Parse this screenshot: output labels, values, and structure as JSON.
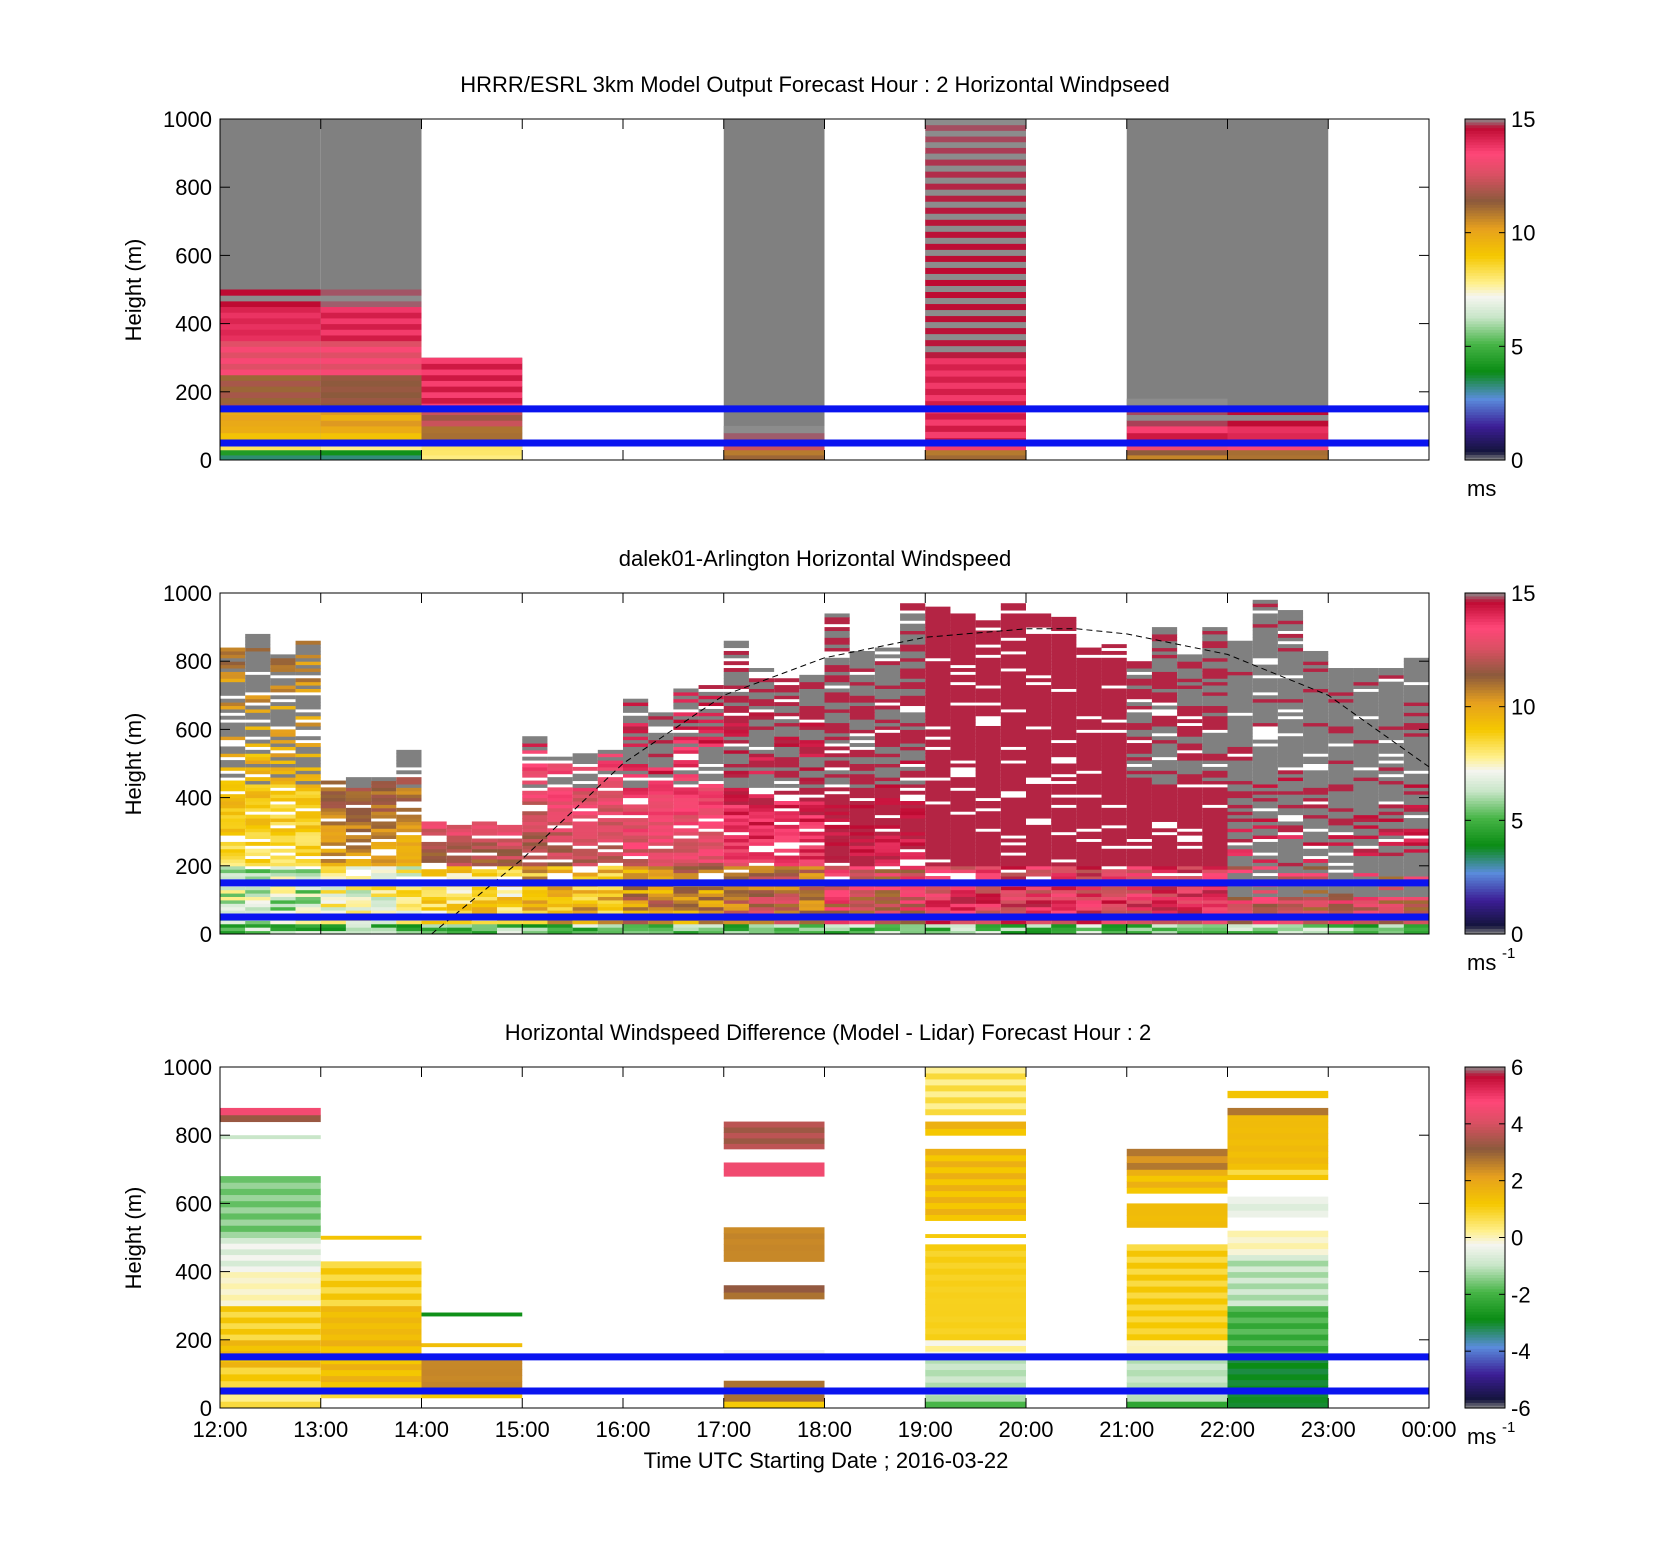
{
  "figure": {
    "shared_xlabel": "Time UTC  Starting Date ; 2016-03-22",
    "x_ticks": [
      "12:00",
      "13:00",
      "14:00",
      "15:00",
      "16:00",
      "17:00",
      "18:00",
      "19:00",
      "20:00",
      "21:00",
      "22:00",
      "23:00",
      "00:00"
    ]
  },
  "chart_data": [
    {
      "type": "heatmap",
      "title": "HRRR/ESRL 3km Model Output   Forecast Hour : 2 Horizontal Windpseed",
      "ylabel": "Height (m)",
      "ylim": [
        0,
        1000
      ],
      "y_ticks": [
        "0",
        "200",
        "400",
        "600",
        "800",
        "1000"
      ],
      "colorbar": {
        "range": [
          0,
          15
        ],
        "ticks": [
          "0",
          "5",
          "10",
          "15"
        ],
        "unit": "ms",
        "unit_sup": ""
      },
      "reference_lines_m": [
        50,
        150
      ],
      "columns": [
        {
          "start_hour": 0,
          "cells": [
            [
              0,
              15,
              3
            ],
            [
              15,
              30,
              4
            ],
            [
              30,
              60,
              8
            ],
            [
              60,
              100,
              9.5
            ],
            [
              100,
              150,
              10
            ],
            [
              150,
              250,
              11.5
            ],
            [
              250,
              350,
              13
            ],
            [
              350,
              450,
              14
            ],
            [
              450,
              500,
              15
            ]
          ]
        },
        {
          "start_hour": 1,
          "cells": [
            [
              0,
              15,
              3
            ],
            [
              15,
              30,
              4
            ],
            [
              30,
              60,
              8
            ],
            [
              60,
              100,
              9.5
            ],
            [
              100,
              150,
              10
            ],
            [
              150,
              250,
              11.5
            ],
            [
              250,
              350,
              13
            ],
            [
              350,
              450,
              14
            ],
            [
              450,
              500,
              15
            ]
          ]
        },
        {
          "start_hour": 2,
          "cells": [
            [
              0,
              30,
              8
            ],
            [
              30,
              60,
              8.5
            ],
            [
              60,
              100,
              11
            ],
            [
              100,
              150,
              12
            ],
            [
              150,
              300,
              14
            ]
          ]
        },
        {
          "start_hour": 5,
          "cells": [
            [
              0,
              30,
              11
            ],
            [
              30,
              60,
              12
            ],
            [
              60,
              100,
              15
            ]
          ]
        },
        {
          "start_hour": 7,
          "cells": [
            [
              0,
              30,
              11
            ],
            [
              30,
              300,
              14
            ],
            [
              300,
              900,
              15
            ],
            [
              900,
              1000,
              15
            ]
          ]
        },
        {
          "start_hour": 9,
          "cells": [
            [
              0,
              30,
              11
            ],
            [
              30,
              60,
              13
            ],
            [
              60,
              100,
              14
            ],
            [
              100,
              150,
              15
            ],
            [
              150,
              180,
              15
            ]
          ]
        },
        {
          "start_hour": 10,
          "cells": [
            [
              0,
              30,
              11
            ],
            [
              30,
              60,
              13
            ],
            [
              60,
              100,
              14
            ],
            [
              100,
              150,
              15
            ]
          ]
        }
      ],
      "above_range_tops_m": [
        1000,
        1000,
        300,
        0,
        0,
        1000,
        0,
        900,
        0,
        1000,
        1000,
        0
      ]
    },
    {
      "type": "heatmap",
      "title": "dalek01-Arlington  Horizontal Windspeed",
      "ylabel": "Height (m)",
      "ylim": [
        0,
        1000
      ],
      "y_ticks": [
        "0",
        "200",
        "400",
        "600",
        "800",
        "1000"
      ],
      "colorbar": {
        "range": [
          0,
          15
        ],
        "ticks": [
          "0",
          "5",
          "10",
          "15"
        ],
        "unit": "ms",
        "unit_sup": "-1"
      },
      "reference_lines_m": [
        50,
        150
      ],
      "profile_bins": [
        {
          "start_hour": 0,
          "top_m": 920,
          "low_speed": 6
        },
        {
          "start_hour": 1,
          "top_m": 550,
          "low_speed": 7
        },
        {
          "start_hour": 2,
          "top_m": 350,
          "low_speed": 8
        },
        {
          "start_hour": 3,
          "top_m": 600,
          "low_speed": 9
        },
        {
          "start_hour": 4,
          "top_m": 730,
          "low_speed": 10
        },
        {
          "start_hour": 5,
          "top_m": 900,
          "low_speed": 11
        },
        {
          "start_hour": 6,
          "top_m": 990,
          "low_speed": 12
        },
        {
          "start_hour": 7,
          "top_m": 1000,
          "low_speed": 13
        },
        {
          "start_hour": 8,
          "top_m": 1000,
          "low_speed": 13
        },
        {
          "start_hour": 9,
          "top_m": 940,
          "low_speed": 13
        },
        {
          "start_hour": 10,
          "top_m": 980,
          "low_speed": 12
        },
        {
          "start_hour": 11,
          "top_m": 850,
          "low_speed": 12
        }
      ],
      "dashed_curve": {
        "x_hours": [
          2.1,
          3,
          4,
          5,
          6,
          7,
          8,
          8.5,
          9,
          10,
          11,
          12
        ],
        "y_m": [
          0,
          220,
          500,
          700,
          810,
          870,
          895,
          895,
          880,
          820,
          700,
          490
        ]
      }
    },
    {
      "type": "heatmap",
      "title": "Horizontal Windspeed Difference (Model - Lidar) Forecast Hour : 2",
      "ylabel": "Height (m)",
      "ylim": [
        0,
        1000
      ],
      "y_ticks": [
        "0",
        "200",
        "400",
        "600",
        "800",
        "1000"
      ],
      "colorbar": {
        "range": [
          -6,
          6
        ],
        "ticks": [
          "-6",
          "-4",
          "-2",
          "0",
          "2",
          "4",
          "6"
        ],
        "unit": "ms",
        "unit_sup": "-1"
      },
      "reference_lines_m": [
        50,
        150
      ],
      "columns": [
        {
          "start_hour": 0,
          "cells": [
            [
              0,
              60,
              0.5
            ],
            [
              60,
              120,
              1
            ],
            [
              120,
              200,
              1.5
            ],
            [
              200,
              300,
              1
            ],
            [
              300,
              400,
              0
            ],
            [
              400,
              500,
              -0.5
            ],
            [
              500,
              680,
              -1.5
            ],
            [
              790,
              800,
              -1
            ],
            [
              840,
              860,
              3.5
            ],
            [
              860,
              880,
              4.5
            ]
          ]
        },
        {
          "start_hour": 1,
          "cells": [
            [
              30,
              60,
              1
            ],
            [
              60,
              200,
              1.5
            ],
            [
              200,
              300,
              1.5
            ],
            [
              300,
              430,
              1
            ],
            [
              495,
              505,
              1
            ]
          ]
        },
        {
          "start_hour": 2,
          "cells": [
            [
              30,
              60,
              1.5
            ],
            [
              60,
              150,
              2.5
            ],
            [
              180,
              190,
              1.5
            ],
            [
              270,
              280,
              -2.5
            ]
          ]
        },
        {
          "start_hour": 5,
          "cells": [
            [
              0,
              20,
              1
            ],
            [
              20,
              80,
              2.5
            ],
            [
              160,
              170,
              -0.5
            ],
            [
              320,
              360,
              3
            ],
            [
              430,
              530,
              2.5
            ],
            [
              680,
              720,
              4.5
            ],
            [
              760,
              840,
              3.5
            ]
          ]
        },
        {
          "start_hour": 7,
          "cells": [
            [
              0,
              20,
              -2
            ],
            [
              20,
              150,
              -1
            ],
            [
              150,
              200,
              0
            ],
            [
              200,
              480,
              1
            ],
            [
              500,
              510,
              1
            ],
            [
              550,
              760,
              1.5
            ],
            [
              800,
              840,
              1.5
            ],
            [
              860,
              1000,
              0.5
            ]
          ]
        },
        {
          "start_hour": 9,
          "cells": [
            [
              0,
              20,
              -2
            ],
            [
              20,
              150,
              -1
            ],
            [
              150,
              200,
              0
            ],
            [
              200,
              480,
              1
            ],
            [
              530,
              600,
              1.5
            ],
            [
              630,
              700,
              1.5
            ],
            [
              700,
              760,
              2.5
            ]
          ]
        },
        {
          "start_hour": 10,
          "cells": [
            [
              0,
              150,
              -3
            ],
            [
              150,
              300,
              -2
            ],
            [
              300,
              450,
              -1
            ],
            [
              450,
              520,
              0
            ],
            [
              560,
              620,
              -0.5
            ],
            [
              670,
              700,
              1
            ],
            [
              700,
              860,
              1.5
            ],
            [
              860,
              880,
              3
            ],
            [
              910,
              930,
              1
            ]
          ]
        }
      ]
    }
  ]
}
